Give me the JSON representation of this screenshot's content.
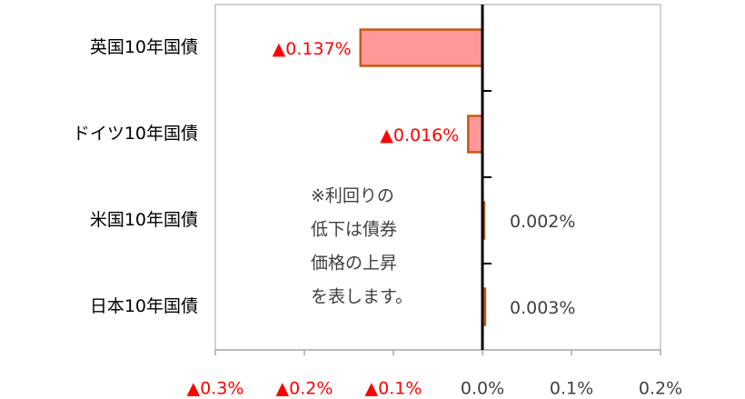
{
  "chart_data": {
    "type": "hbar",
    "categories": [
      "英国10年国債",
      "ドイツ10年国債",
      "米国10年国債",
      "日本10年国債"
    ],
    "values": [
      -0.137,
      -0.016,
      0.002,
      0.003
    ],
    "value_labels": [
      "▲0.137%",
      "▲0.016%",
      "0.002%",
      "0.003%"
    ],
    "color": "#ff9999",
    "edge_color": "#c55a11",
    "negative_label_color": "#ff0000",
    "xlim": [
      -0.3,
      0.2
    ],
    "xticks": [
      {
        "value": -0.3,
        "label": "▲0.3%"
      },
      {
        "value": -0.2,
        "label": "▲0.2%"
      },
      {
        "value": -0.1,
        "label": "▲0.1%"
      },
      {
        "value": 0,
        "label": "0.0%"
      },
      {
        "value": 0.1,
        "label": "0.1%"
      },
      {
        "value": 0.2,
        "label": "0.2%"
      }
    ],
    "annotation": [
      "※利回りの",
      "低下は債券",
      "価格の上昇",
      "を表します。"
    ]
  }
}
